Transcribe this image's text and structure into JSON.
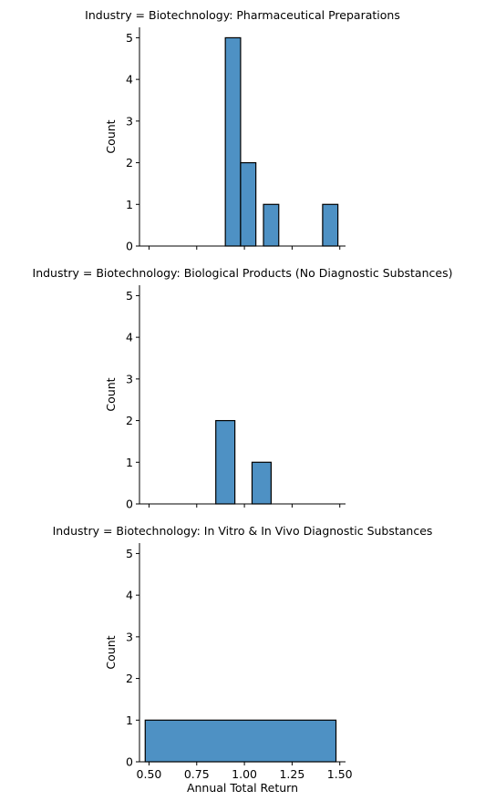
{
  "chart_data": [
    {
      "type": "histogram",
      "title": "Industry = Biotechnology: Pharmaceutical Preparations",
      "ylabel": "Count",
      "xlabel": "",
      "ylim": [
        0,
        5.25
      ],
      "yticks": [
        0,
        1,
        2,
        3,
        4,
        5
      ],
      "xlim": [
        0.45,
        1.53
      ],
      "bins": [
        {
          "x0": 0.9,
          "x1": 0.98,
          "count": 5
        },
        {
          "x0": 0.98,
          "x1": 1.06,
          "count": 2
        },
        {
          "x0": 1.1,
          "x1": 1.18,
          "count": 1
        },
        {
          "x0": 1.41,
          "x1": 1.49,
          "count": 1
        }
      ]
    },
    {
      "type": "histogram",
      "title": "Industry = Biotechnology: Biological Products (No Diagnostic Substances)",
      "ylabel": "Count",
      "xlabel": "",
      "ylim": [
        0,
        5.25
      ],
      "yticks": [
        0,
        1,
        2,
        3,
        4,
        5
      ],
      "xlim": [
        0.45,
        1.53
      ],
      "bins": [
        {
          "x0": 0.85,
          "x1": 0.95,
          "count": 2
        },
        {
          "x0": 1.04,
          "x1": 1.14,
          "count": 1
        }
      ]
    },
    {
      "type": "histogram",
      "title": "Industry = Biotechnology: In Vitro & In Vivo Diagnostic Substances",
      "ylabel": "Count",
      "xlabel": "Annual Total Return",
      "ylim": [
        0,
        5.25
      ],
      "yticks": [
        0,
        1,
        2,
        3,
        4,
        5
      ],
      "xlim": [
        0.45,
        1.53
      ],
      "xticks": [
        "0.50",
        "0.75",
        "1.00",
        "1.25",
        "1.50"
      ],
      "bins": [
        {
          "x0": 0.48,
          "x1": 1.48,
          "count": 1
        }
      ]
    }
  ],
  "colors": {
    "bar_fill": "#4e91c4",
    "bar_edge": "#000000",
    "axis": "#000000"
  }
}
